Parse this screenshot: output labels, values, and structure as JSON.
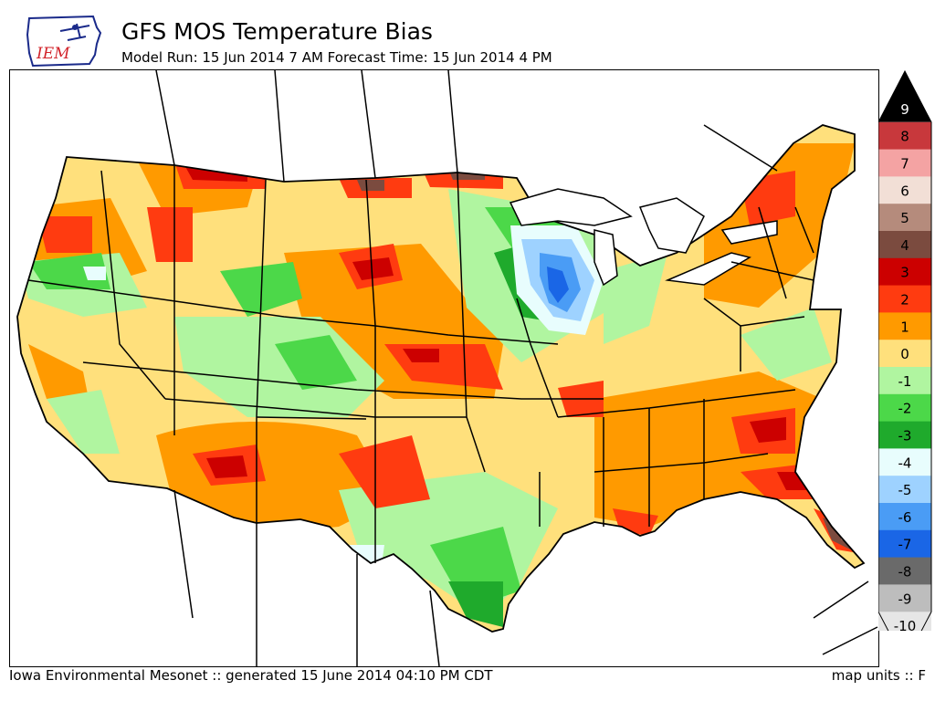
{
  "header": {
    "title": "GFS MOS Temperature Bias",
    "subtitle": "Model Run: 15 Jun 2014 7 AM Forecast Time: 15 Jun 2014 4 PM"
  },
  "logo": {
    "text": "IEM"
  },
  "legend": {
    "items": [
      {
        "label": "9",
        "color": "#000000"
      },
      {
        "label": "8",
        "color": "#c8383c"
      },
      {
        "label": "7",
        "color": "#f4a3a3"
      },
      {
        "label": "6",
        "color": "#f2dfd6"
      },
      {
        "label": "5",
        "color": "#b58b7c"
      },
      {
        "label": "4",
        "color": "#7b4b3f"
      },
      {
        "label": "3",
        "color": "#cc0000"
      },
      {
        "label": "2",
        "color": "#ff3b10"
      },
      {
        "label": "1",
        "color": "#ff9a00"
      },
      {
        "label": "0",
        "color": "#ffe07c"
      },
      {
        "label": "-1",
        "color": "#b0f5a0"
      },
      {
        "label": "-2",
        "color": "#4cd849"
      },
      {
        "label": "-3",
        "color": "#1faa2c"
      },
      {
        "label": "-4",
        "color": "#e8fdfd"
      },
      {
        "label": "-5",
        "color": "#9ed2ff"
      },
      {
        "label": "-6",
        "color": "#4a9cf5"
      },
      {
        "label": "-7",
        "color": "#1a66e6"
      },
      {
        "label": "-8",
        "color": "#6a6a6a"
      },
      {
        "label": "-9",
        "color": "#bdbdbd"
      },
      {
        "label": "-10",
        "color": "#e6e6e6"
      }
    ]
  },
  "footer": {
    "left": "Iowa Environmental Mesonet :: generated 15 June 2014 04:10 PM CDT",
    "right": "map units :: F"
  }
}
